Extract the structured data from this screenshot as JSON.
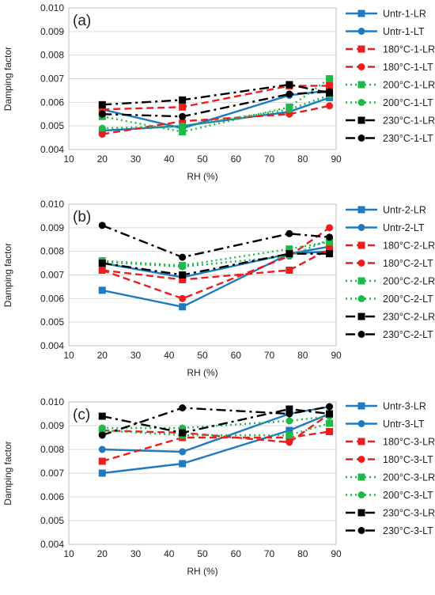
{
  "chart_data": [
    {
      "type": "line",
      "panel_label": "(a)",
      "xlabel": "RH (%)",
      "ylabel": "Damping factor",
      "xlim": [
        10,
        90
      ],
      "ylim": [
        0.004,
        0.01
      ],
      "x_ticks": [
        "10",
        "20",
        "30",
        "40",
        "50",
        "60",
        "70",
        "80",
        "90"
      ],
      "y_ticks": [
        "0.004",
        "0.005",
        "0.006",
        "0.007",
        "0.008",
        "0.009",
        "0.010"
      ],
      "grid": true,
      "legend_position": "right",
      "x": [
        20,
        44,
        76,
        88
      ],
      "series": [
        {
          "name": "Untr-1-LR",
          "color": "#1f7bc0",
          "dash": "solid",
          "marker": "square",
          "values": [
            0.0048,
            0.005,
            0.0056,
            0.0062
          ]
        },
        {
          "name": "Untr-1-LT",
          "color": "#1f7bc0",
          "dash": "solid",
          "marker": "circle",
          "values": [
            0.0057,
            0.0049,
            0.0063,
            0.0065
          ]
        },
        {
          "name": "180°C-1-LR",
          "color": "#ee1c1c",
          "dash": "dash",
          "marker": "square",
          "values": [
            0.0057,
            0.0058,
            0.0067,
            0.0067
          ]
        },
        {
          "name": "180°C-1-LT",
          "color": "#ee1c1c",
          "dash": "dash",
          "marker": "circle",
          "values": [
            0.00465,
            0.0052,
            0.0055,
            0.00585
          ]
        },
        {
          "name": "200°C-1-LR",
          "color": "#1fb84a",
          "dash": "dot",
          "marker": "square",
          "values": [
            0.0054,
            0.00475,
            0.0058,
            0.007
          ]
        },
        {
          "name": "200°C-1-LT",
          "color": "#1fb84a",
          "dash": "dot",
          "marker": "circle",
          "values": [
            0.0049,
            0.005,
            0.0057,
            0.0063
          ]
        },
        {
          "name": "230°C-1-LR",
          "color": "#000000",
          "dash": "dashdot",
          "marker": "square",
          "values": [
            0.0059,
            0.0061,
            0.00675,
            0.0064
          ]
        },
        {
          "name": "230°C-1-LT",
          "color": "#000000",
          "dash": "dashdot",
          "marker": "circle",
          "values": [
            0.0055,
            0.0054,
            0.00635,
            0.00645
          ]
        }
      ]
    },
    {
      "type": "line",
      "panel_label": "(b)",
      "xlabel": "RH (%)",
      "ylabel": "Damping factor",
      "xlim": [
        10,
        90
      ],
      "ylim": [
        0.004,
        0.01
      ],
      "x_ticks": [
        "10",
        "20",
        "30",
        "40",
        "50",
        "60",
        "70",
        "80",
        "90"
      ],
      "y_ticks": [
        "0.004",
        "0.005",
        "0.006",
        "0.007",
        "0.008",
        "0.009",
        "0.010"
      ],
      "grid": true,
      "legend_position": "right",
      "x": [
        20,
        44,
        76,
        88
      ],
      "series": [
        {
          "name": "Untr-2-LR",
          "color": "#1f7bc0",
          "dash": "solid",
          "marker": "square",
          "values": [
            0.00635,
            0.00565,
            0.0079,
            0.008
          ]
        },
        {
          "name": "Untr-2-LT",
          "color": "#1f7bc0",
          "dash": "solid",
          "marker": "circle",
          "values": [
            0.0075,
            0.0069,
            0.0079,
            0.0082
          ]
        },
        {
          "name": "180°C-2-LR",
          "color": "#ee1c1c",
          "dash": "dash",
          "marker": "square",
          "values": [
            0.0072,
            0.0068,
            0.0072,
            0.0081
          ]
        },
        {
          "name": "180°C-2-LT",
          "color": "#ee1c1c",
          "dash": "dash",
          "marker": "circle",
          "values": [
            0.0072,
            0.006,
            0.0078,
            0.009
          ]
        },
        {
          "name": "200°C-2-LR",
          "color": "#1fb84a",
          "dash": "dot",
          "marker": "square",
          "values": [
            0.0076,
            0.0074,
            0.0081,
            0.0084
          ]
        },
        {
          "name": "200°C-2-LT",
          "color": "#1fb84a",
          "dash": "dot",
          "marker": "circle",
          "values": [
            0.00755,
            0.00735,
            0.0078,
            0.0085
          ]
        },
        {
          "name": "230°C-2-LR",
          "color": "#000000",
          "dash": "dashdot",
          "marker": "square",
          "values": [
            0.0075,
            0.007,
            0.0079,
            0.0079
          ]
        },
        {
          "name": "230°C-2-LT",
          "color": "#000000",
          "dash": "dashdot",
          "marker": "circle",
          "values": [
            0.0091,
            0.00775,
            0.00875,
            0.0086
          ]
        }
      ]
    },
    {
      "type": "line",
      "panel_label": "(c)",
      "xlabel": "RH (%)",
      "ylabel": "Damping factor",
      "xlim": [
        10,
        90
      ],
      "ylim": [
        0.004,
        0.01
      ],
      "x_ticks": [
        "10",
        "20",
        "30",
        "40",
        "50",
        "60",
        "70",
        "80",
        "90"
      ],
      "y_ticks": [
        "0.004",
        "0.005",
        "0.006",
        "0.007",
        "0.008",
        "0.009",
        "0.010"
      ],
      "grid": true,
      "legend_position": "right",
      "x": [
        20,
        44,
        76,
        88
      ],
      "series": [
        {
          "name": "Untr-3-LR",
          "color": "#1f7bc0",
          "dash": "solid",
          "marker": "square",
          "values": [
            0.007,
            0.0074,
            0.0088,
            0.0095
          ]
        },
        {
          "name": "Untr-3-LT",
          "color": "#1f7bc0",
          "dash": "solid",
          "marker": "circle",
          "values": [
            0.008,
            0.0079,
            0.0095,
            0.0098
          ]
        },
        {
          "name": "180°C-3-LR",
          "color": "#ee1c1c",
          "dash": "dash",
          "marker": "square",
          "values": [
            0.0075,
            0.0085,
            0.0085,
            0.00875
          ]
        },
        {
          "name": "180°C-3-LT",
          "color": "#ee1c1c",
          "dash": "dash",
          "marker": "circle",
          "values": [
            0.0088,
            0.0087,
            0.0083,
            0.0095
          ]
        },
        {
          "name": "200°C-3-LR",
          "color": "#1fb84a",
          "dash": "dot",
          "marker": "square",
          "values": [
            0.0088,
            0.0086,
            0.0086,
            0.0091
          ]
        },
        {
          "name": "200°C-3-LT",
          "color": "#1fb84a",
          "dash": "dot",
          "marker": "circle",
          "values": [
            0.0089,
            0.0089,
            0.0092,
            0.0094
          ]
        },
        {
          "name": "230°C-3-LR",
          "color": "#000000",
          "dash": "dashdot",
          "marker": "square",
          "values": [
            0.0094,
            0.0087,
            0.0097,
            0.0095
          ]
        },
        {
          "name": "230°C-3-LT",
          "color": "#000000",
          "dash": "dashdot",
          "marker": "circle",
          "values": [
            0.0086,
            0.00975,
            0.0095,
            0.0098
          ]
        }
      ]
    }
  ]
}
